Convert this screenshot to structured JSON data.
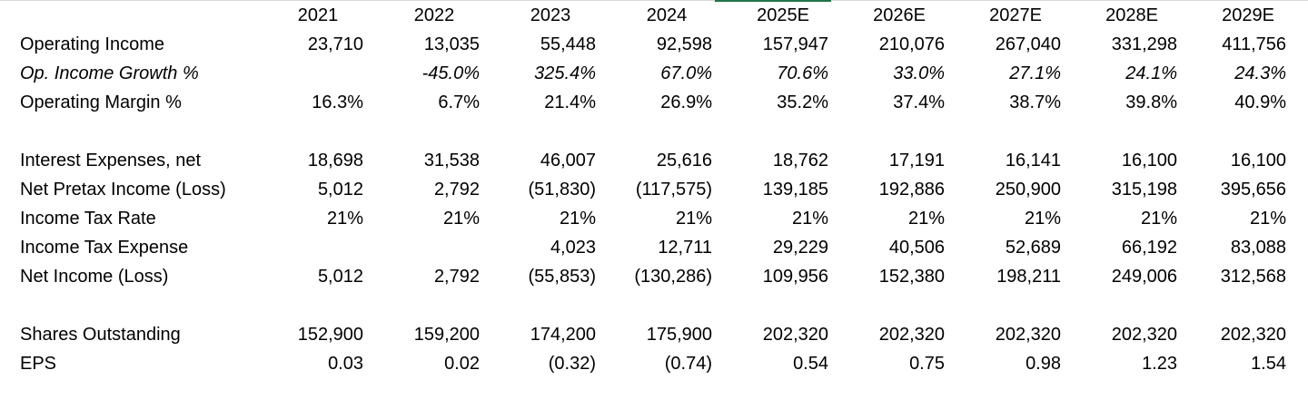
{
  "columns": [
    "2021",
    "2022",
    "2023",
    "2024",
    "2025E",
    "2026E",
    "2027E",
    "2028E",
    "2029E"
  ],
  "rows": [
    {
      "label": "Operating Income",
      "style": "normal",
      "values": [
        "23,710",
        "13,035",
        "55,448",
        "92,598",
        "157,947",
        "210,076",
        "267,040",
        "331,298",
        "411,756"
      ]
    },
    {
      "label": "Op. Income Growth %",
      "style": "italic",
      "values": [
        "",
        "-45.0%",
        "325.4%",
        "67.0%",
        "70.6%",
        "33.0%",
        "27.1%",
        "24.1%",
        "24.3%"
      ]
    },
    {
      "label": "Operating Margin %",
      "style": "normal",
      "values": [
        "16.3%",
        "6.7%",
        "21.4%",
        "26.9%",
        "35.2%",
        "37.4%",
        "38.7%",
        "39.8%",
        "40.9%"
      ]
    },
    {
      "label": "",
      "style": "blank",
      "values": [
        "",
        "",
        "",
        "",
        "",
        "",
        "",
        "",
        ""
      ]
    },
    {
      "label": "Interest Expenses, net",
      "style": "normal",
      "values": [
        "18,698",
        "31,538",
        "46,007",
        "25,616",
        "18,762",
        "17,191",
        "16,141",
        "16,100",
        "16,100"
      ]
    },
    {
      "label": "Net Pretax Income (Loss)",
      "style": "normal",
      "values": [
        "5,012",
        "2,792",
        "(51,830)",
        "(117,575)",
        "139,185",
        "192,886",
        "250,900",
        "315,198",
        "395,656"
      ]
    },
    {
      "label": "Income Tax Rate",
      "style": "normal",
      "values": [
        "21%",
        "21%",
        "21%",
        "21%",
        "21%",
        "21%",
        "21%",
        "21%",
        "21%"
      ]
    },
    {
      "label": "Income Tax Expense",
      "style": "normal",
      "values": [
        "",
        "",
        "4,023",
        "12,711",
        "29,229",
        "40,506",
        "52,689",
        "66,192",
        "83,088"
      ]
    },
    {
      "label": "Net Income (Loss)",
      "style": "normal",
      "values": [
        "5,012",
        "2,792",
        "(55,853)",
        "(130,286)",
        "109,956",
        "152,380",
        "198,211",
        "249,006",
        "312,568"
      ]
    },
    {
      "label": "",
      "style": "blank",
      "values": [
        "",
        "",
        "",
        "",
        "",
        "",
        "",
        "",
        ""
      ]
    },
    {
      "label": "Shares Outstanding",
      "style": "normal",
      "values": [
        "152,900",
        "159,200",
        "174,200",
        "175,900",
        "202,320",
        "202,320",
        "202,320",
        "202,320",
        "202,320"
      ]
    },
    {
      "label": "EPS",
      "style": "normal",
      "values": [
        "0.03",
        "0.02",
        "(0.32)",
        "(0.74)",
        "0.54",
        "0.75",
        "0.98",
        "1.23",
        "1.54"
      ]
    }
  ]
}
